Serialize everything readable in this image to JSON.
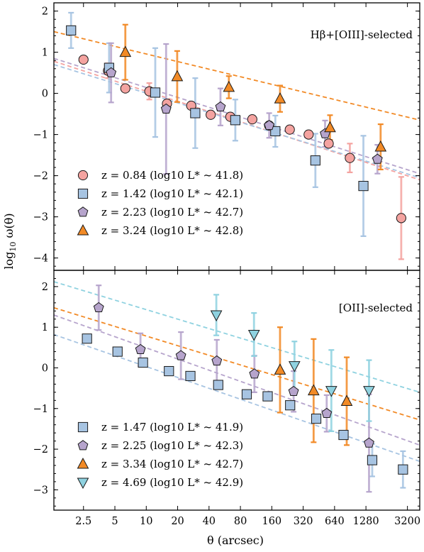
{
  "chart_data": [
    {
      "type": "scatter",
      "title": "Hβ+[OIII]-selected",
      "xlabel": "θ (arcsec)",
      "ylabel": "log10 ω(θ)",
      "xscale": "log",
      "xlim": [
        1.3,
        4200
      ],
      "ylim": [
        -4.3,
        2.2
      ],
      "yticks": [
        2,
        1,
        0,
        -1,
        -2,
        -3,
        -4
      ],
      "legend": "bottom-left",
      "series": [
        {
          "name": "z = 0.84 (log10 L* ~ 41.8)",
          "color": "#f4a3a0",
          "marker": "circle",
          "x": [
            2.5,
            4.3,
            6.3,
            10.7,
            15.8,
            27,
            41.5,
            64,
            104,
            151,
            238,
            361,
            562,
            897,
            2790
          ],
          "y": [
            0.82,
            0.55,
            0.12,
            0.05,
            -0.25,
            -0.3,
            -0.52,
            -0.57,
            -0.63,
            -0.78,
            -0.88,
            -1.0,
            -1.22,
            -1.57,
            -3.03
          ],
          "yerr": [
            0,
            0.18,
            0,
            0.2,
            0,
            0,
            0,
            0,
            0,
            0,
            0,
            0,
            0,
            0.35,
            1.0
          ]
        },
        {
          "name": "z = 1.42 (log10 L* ~ 42.1)",
          "color": "#a7c4e2",
          "marker": "square",
          "x": [
            1.9,
            4.4,
            12.2,
            29.5,
            71.5,
            173,
            419,
            1210
          ],
          "y": [
            1.53,
            0.62,
            0.02,
            -0.48,
            -0.65,
            -0.92,
            -1.63,
            -2.25
          ],
          "yerr": [
            0.43,
            0.6,
            1.08,
            0.85,
            0.5,
            0.38,
            0.65,
            1.22
          ]
        },
        {
          "name": "z = 2.23 (log10 L* ~ 42.7)",
          "color": "#b6a4cc",
          "marker": "pentagon",
          "x": [
            4.6,
            15.5,
            51.5,
            151,
            519,
            1650
          ],
          "y": [
            0.5,
            -0.38,
            -0.33,
            -0.78,
            -0.98,
            -1.6
          ],
          "yerr": [
            0.72,
            1.58,
            0.45,
            0.3,
            0.32,
            0.35
          ]
        },
        {
          "name": "z = 3.24 (log10 L* ~ 42.8)",
          "color": "#f28a26",
          "marker": "triangle-up",
          "x": [
            6.3,
            19.8,
            62,
            192,
            579,
            1770
          ],
          "y": [
            1.0,
            0.41,
            0.15,
            -0.13,
            -0.83,
            -1.3
          ],
          "yerr": [
            0.67,
            0.62,
            0.27,
            0.32,
            0.3,
            0.55
          ]
        }
      ],
      "fits": [
        {
          "series": 0,
          "color": "#f4a3a0",
          "x": [
            1.3,
            4200
          ],
          "y": [
            0.78,
            -2.1
          ]
        },
        {
          "series": 1,
          "color": "#a7c4e2",
          "x": [
            1.3,
            4200
          ],
          "y": [
            0.7,
            -2.05
          ]
        },
        {
          "series": 2,
          "color": "#b6a4cc",
          "x": [
            1.3,
            4200
          ],
          "y": [
            0.85,
            -1.95
          ]
        },
        {
          "series": 3,
          "color": "#f28a26",
          "x": [
            1.3,
            4200
          ],
          "y": [
            1.5,
            -0.65
          ]
        }
      ]
    },
    {
      "type": "scatter",
      "title": "[OII]-selected",
      "xlabel": "θ (arcsec)",
      "ylabel": "log10 ω(θ)",
      "xscale": "log",
      "xlim": [
        1.3,
        4200
      ],
      "ylim": [
        -3.5,
        2.4
      ],
      "yticks": [
        2,
        1,
        0,
        -1,
        -2,
        -3
      ],
      "xticks": [
        2.5,
        5,
        10,
        20,
        40,
        80,
        160,
        320,
        640,
        1280,
        3200
      ],
      "legend": "bottom-left",
      "series": [
        {
          "name": "z = 1.47 (log10 L* ~ 41.9)",
          "color": "#a7c4e2",
          "marker": "square",
          "x": [
            2.7,
            5.3,
            9.3,
            16.5,
            26.5,
            49,
            92,
            146,
            240,
            427,
            780,
            1470,
            2900
          ],
          "y": [
            0.72,
            0.4,
            0.13,
            -0.08,
            -0.2,
            -0.42,
            -0.65,
            -0.7,
            -0.92,
            -1.25,
            -1.65,
            -2.27,
            -2.5
          ],
          "yerr": [
            0,
            0,
            0,
            0,
            0,
            0,
            0,
            0,
            0,
            0,
            0,
            0.4,
            0.45
          ]
        },
        {
          "name": "z = 2.25 (log10 L* ~ 42.3)",
          "color": "#b6a4cc",
          "marker": "pentagon",
          "x": [
            3.5,
            8.8,
            21.5,
            47.5,
            109,
            259,
            538,
            1370
          ],
          "y": [
            1.48,
            0.45,
            0.3,
            0.17,
            -0.15,
            -0.58,
            -1.12,
            -1.85
          ],
          "yerr": [
            0.55,
            0.4,
            0.58,
            0.52,
            0.45,
            0.5,
            0.45,
            1.2
          ]
        },
        {
          "name": "z = 3.34 (log10 L* ~ 42.7)",
          "color": "#f28a26",
          "marker": "triangle-up",
          "x": [
            192,
            403,
            837
          ],
          "y": [
            -0.05,
            -0.56,
            -0.82
          ],
          "yerr": [
            1.05,
            1.27,
            1.08
          ]
        },
        {
          "name": "z = 4.69 (log10 L* ~ 42.9)",
          "color": "#8fd2e0",
          "marker": "triangle-down",
          "x": [
            47,
            108,
            264,
            596,
            1370
          ],
          "y": [
            1.3,
            0.82,
            0.05,
            -0.56,
            -0.56
          ],
          "yerr": [
            0.5,
            0.53,
            0.6,
            1.0,
            0.75
          ]
        }
      ],
      "fits": [
        {
          "series": 0,
          "color": "#a7c4e2",
          "x": [
            1.3,
            4200
          ],
          "y": [
            0.82,
            -2.3
          ]
        },
        {
          "series": 1,
          "color": "#b6a4cc",
          "x": [
            1.3,
            4200
          ],
          "y": [
            1.3,
            -1.9
          ]
        },
        {
          "series": 2,
          "color": "#f28a26",
          "x": [
            1.3,
            4200
          ],
          "y": [
            1.48,
            -1.28
          ]
        },
        {
          "series": 3,
          "color": "#8fd2e0",
          "x": [
            1.3,
            4200
          ],
          "y": [
            2.12,
            -0.6
          ]
        }
      ]
    }
  ]
}
